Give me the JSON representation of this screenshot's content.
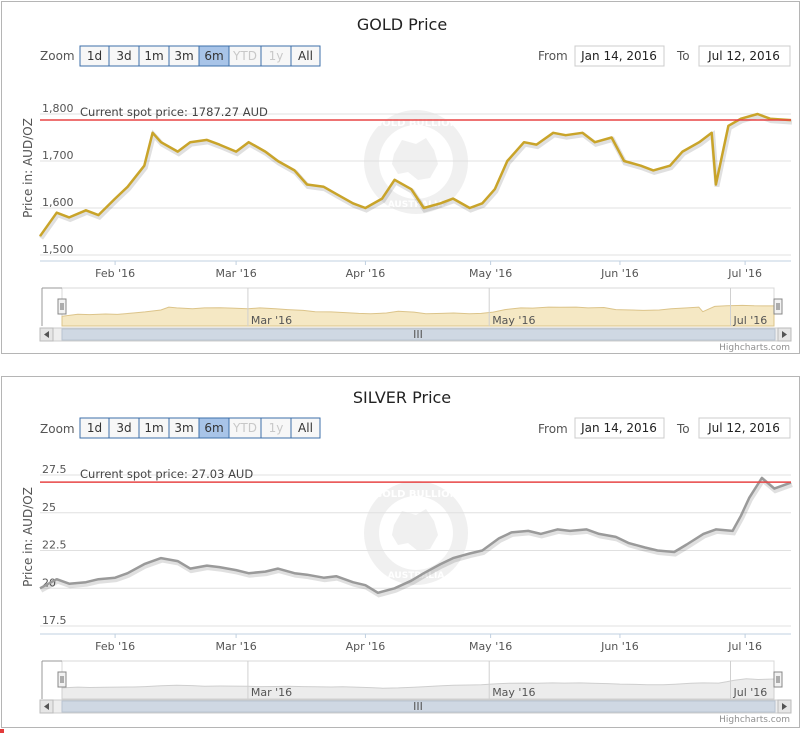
{
  "charts": [
    {
      "id": "gold",
      "zoom_label": "Zoom",
      "zoom_buttons": [
        {
          "label": "1d",
          "state": "normal"
        },
        {
          "label": "3d",
          "state": "normal"
        },
        {
          "label": "1m",
          "state": "normal"
        },
        {
          "label": "3m",
          "state": "normal"
        },
        {
          "label": "6m",
          "state": "active"
        },
        {
          "label": "YTD",
          "state": "disabled"
        },
        {
          "label": "1y",
          "state": "disabled"
        },
        {
          "label": "All",
          "state": "normal"
        }
      ],
      "from_label": "From",
      "from_value": "Jan 14, 2016",
      "to_label": "To",
      "to_value": "Jul 12, 2016",
      "spot_label": "Current spot price: 1787.27 AUD",
      "navigator_labels": [
        "Mar '16",
        "May '16",
        "Jul '16"
      ],
      "scrollbar_grip": "III",
      "credit": "Highcharts.com",
      "watermark_text": "GOLD BULLION",
      "watermark_bottom": "AUSTRALIA",
      "colors": {
        "line": "#c9a42a",
        "spot": "#e84545",
        "nav_fill": "#f5e8c4",
        "nav_line": "#dcc48a"
      }
    },
    {
      "id": "silver",
      "zoom_label": "Zoom",
      "zoom_buttons": [
        {
          "label": "1d",
          "state": "normal"
        },
        {
          "label": "3d",
          "state": "normal"
        },
        {
          "label": "1m",
          "state": "normal"
        },
        {
          "label": "3m",
          "state": "normal"
        },
        {
          "label": "6m",
          "state": "active"
        },
        {
          "label": "YTD",
          "state": "disabled"
        },
        {
          "label": "1y",
          "state": "disabled"
        },
        {
          "label": "All",
          "state": "normal"
        }
      ],
      "from_label": "From",
      "from_value": "Jan 14, 2016",
      "to_label": "To",
      "to_value": "Jul 12, 2016",
      "spot_label": "Current spot price: 27.03 AUD",
      "navigator_labels": [
        "Mar '16",
        "May '16",
        "Jul '16"
      ],
      "scrollbar_grip": "III",
      "credit": "Highcharts.com",
      "watermark_text": "GOLD BULLION",
      "watermark_bottom": "AUSTRALIA",
      "colors": {
        "line": "#9a9a9a",
        "spot": "#e84545",
        "nav_fill": "#ececec",
        "nav_line": "#cfcfcf"
      }
    }
  ],
  "chart_data": [
    {
      "type": "line",
      "title": "GOLD Price",
      "ylabel": "Price in: AUD/OZ",
      "ylim": [
        1500,
        1800
      ],
      "yticks": [
        1500,
        1600,
        1700,
        1800
      ],
      "ytick_labels": [
        "1,500",
        "1,600",
        "1,700",
        "1,800"
      ],
      "xlim": [
        "2016-01-14",
        "2016-07-12"
      ],
      "xticks": [
        {
          "date": "2016-02-01",
          "label": "Feb '16"
        },
        {
          "date": "2016-03-01",
          "label": "Mar '16"
        },
        {
          "date": "2016-04-01",
          "label": "Apr '16"
        },
        {
          "date": "2016-05-01",
          "label": "May '16"
        },
        {
          "date": "2016-06-01",
          "label": "Jun '16"
        },
        {
          "date": "2016-07-01",
          "label": "Jul '16"
        }
      ],
      "grid": true,
      "reference_line": 1787.27,
      "series": [
        {
          "x": [
            "2016-01-14",
            "2016-01-18",
            "2016-01-21",
            "2016-01-25",
            "2016-01-28",
            "2016-02-01",
            "2016-02-04",
            "2016-02-08",
            "2016-02-10",
            "2016-02-12",
            "2016-02-16",
            "2016-02-19",
            "2016-02-23",
            "2016-02-26",
            "2016-03-01",
            "2016-03-04",
            "2016-03-08",
            "2016-03-11",
            "2016-03-15",
            "2016-03-18",
            "2016-03-22",
            "2016-03-25",
            "2016-03-29",
            "2016-04-01",
            "2016-04-05",
            "2016-04-08",
            "2016-04-12",
            "2016-04-15",
            "2016-04-19",
            "2016-04-22",
            "2016-04-26",
            "2016-04-29",
            "2016-05-02",
            "2016-05-05",
            "2016-05-09",
            "2016-05-12",
            "2016-05-16",
            "2016-05-19",
            "2016-05-23",
            "2016-05-26",
            "2016-05-30",
            "2016-06-02",
            "2016-06-06",
            "2016-06-09",
            "2016-06-13",
            "2016-06-16",
            "2016-06-20",
            "2016-06-23",
            "2016-06-24",
            "2016-06-27",
            "2016-06-30",
            "2016-07-04",
            "2016-07-07",
            "2016-07-12"
          ],
          "values": [
            1540,
            1590,
            1580,
            1595,
            1585,
            1620,
            1645,
            1690,
            1760,
            1740,
            1720,
            1740,
            1745,
            1735,
            1720,
            1740,
            1720,
            1700,
            1680,
            1650,
            1645,
            1630,
            1610,
            1600,
            1620,
            1660,
            1640,
            1600,
            1610,
            1620,
            1600,
            1610,
            1640,
            1700,
            1740,
            1735,
            1760,
            1755,
            1760,
            1740,
            1750,
            1700,
            1690,
            1680,
            1690,
            1720,
            1740,
            1760,
            1650,
            1775,
            1790,
            1800,
            1790,
            1787
          ]
        }
      ]
    },
    {
      "type": "line",
      "title": "SILVER Price",
      "ylabel": "Price in: AUD/OZ",
      "ylim": [
        17.5,
        27.5
      ],
      "yticks": [
        17.5,
        20,
        22.5,
        25,
        27.5
      ],
      "ytick_labels": [
        "17.5",
        "20",
        "22.5",
        "25",
        "27.5"
      ],
      "xlim": [
        "2016-01-14",
        "2016-07-12"
      ],
      "xticks": [
        {
          "date": "2016-02-01",
          "label": "Feb '16"
        },
        {
          "date": "2016-03-01",
          "label": "Mar '16"
        },
        {
          "date": "2016-04-01",
          "label": "Apr '16"
        },
        {
          "date": "2016-05-01",
          "label": "May '16"
        },
        {
          "date": "2016-06-01",
          "label": "Jun '16"
        },
        {
          "date": "2016-07-01",
          "label": "Jul '16"
        }
      ],
      "grid": true,
      "reference_line": 27.03,
      "series": [
        {
          "x": [
            "2016-01-14",
            "2016-01-18",
            "2016-01-21",
            "2016-01-25",
            "2016-01-28",
            "2016-02-01",
            "2016-02-04",
            "2016-02-08",
            "2016-02-12",
            "2016-02-16",
            "2016-02-19",
            "2016-02-23",
            "2016-02-26",
            "2016-03-01",
            "2016-03-04",
            "2016-03-08",
            "2016-03-11",
            "2016-03-15",
            "2016-03-18",
            "2016-03-22",
            "2016-03-25",
            "2016-03-29",
            "2016-04-01",
            "2016-04-04",
            "2016-04-08",
            "2016-04-12",
            "2016-04-15",
            "2016-04-19",
            "2016-04-22",
            "2016-04-26",
            "2016-04-29",
            "2016-05-03",
            "2016-05-06",
            "2016-05-10",
            "2016-05-13",
            "2016-05-17",
            "2016-05-20",
            "2016-05-24",
            "2016-05-27",
            "2016-05-31",
            "2016-06-03",
            "2016-06-07",
            "2016-06-10",
            "2016-06-14",
            "2016-06-17",
            "2016-06-21",
            "2016-06-24",
            "2016-06-28",
            "2016-06-30",
            "2016-07-02",
            "2016-07-05",
            "2016-07-08",
            "2016-07-12"
          ],
          "values": [
            20.0,
            20.6,
            20.3,
            20.4,
            20.6,
            20.7,
            21.0,
            21.6,
            22.0,
            21.8,
            21.3,
            21.5,
            21.4,
            21.2,
            21.0,
            21.1,
            21.3,
            21.0,
            20.9,
            20.7,
            20.8,
            20.4,
            20.2,
            19.7,
            20.0,
            20.5,
            21.0,
            21.6,
            22.0,
            22.3,
            22.5,
            23.3,
            23.7,
            23.8,
            23.6,
            23.9,
            23.8,
            23.9,
            23.6,
            23.4,
            23.0,
            22.7,
            22.5,
            22.4,
            22.9,
            23.6,
            23.9,
            23.8,
            24.8,
            26.0,
            27.3,
            26.6,
            27.0
          ]
        }
      ]
    }
  ]
}
